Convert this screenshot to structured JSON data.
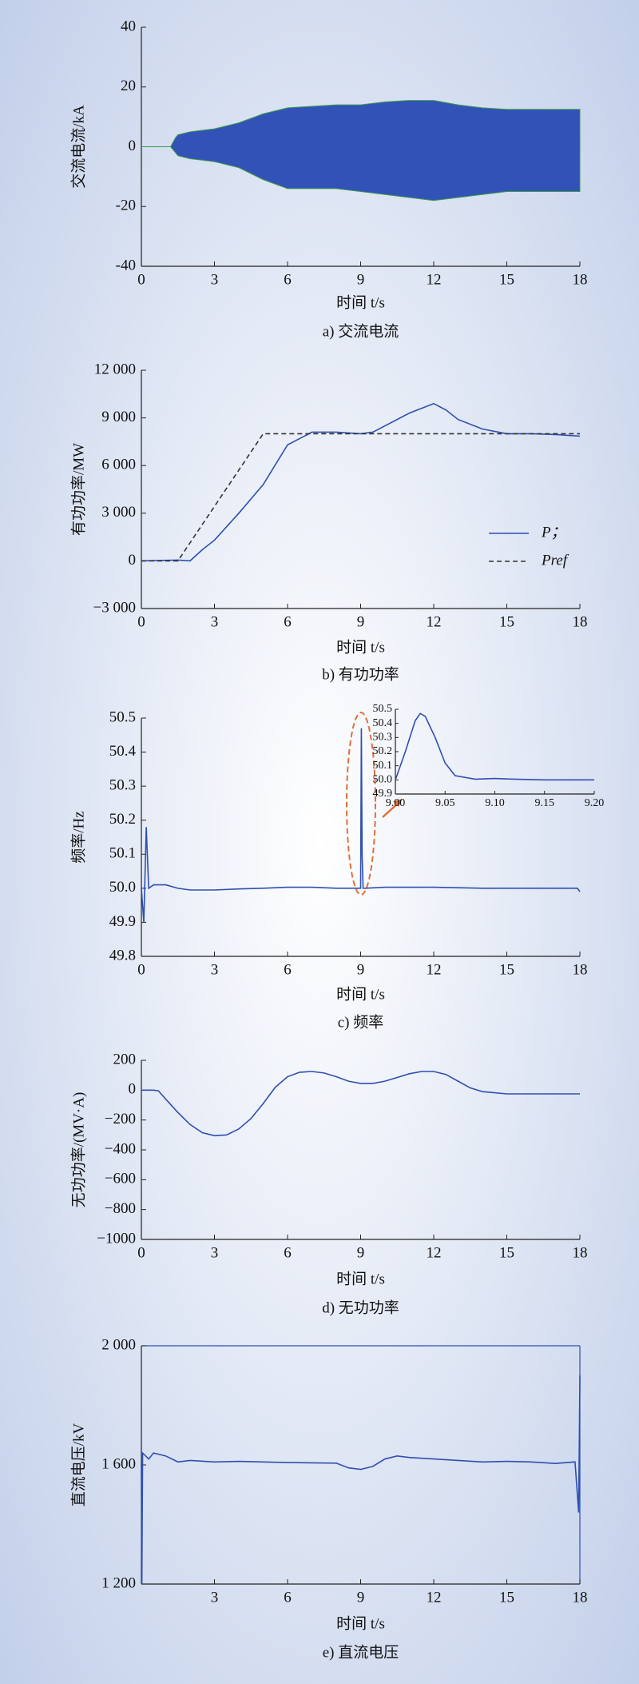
{
  "chart_data": [
    {
      "type": "band",
      "caption": "a) 交流电流",
      "xlabel": "时间 t/s",
      "ylabel": "交流电流/kA",
      "color": "#3352b8",
      "edge_color": "#3c9a4a",
      "x": [
        0,
        1.1,
        1.2,
        1.4,
        1.5,
        2,
        3,
        4,
        5,
        6,
        7,
        8,
        9,
        10,
        11,
        12,
        13,
        14,
        15,
        16,
        17,
        18
      ],
      "upper": [
        0,
        0,
        0,
        3,
        4,
        5,
        6,
        8,
        11,
        13,
        13.5,
        14,
        14,
        15,
        15.5,
        15.5,
        14,
        13,
        12.5,
        12.5,
        12.5,
        12.5
      ],
      "lower": [
        0,
        0,
        0,
        -2,
        -3,
        -4,
        -5,
        -7,
        -11,
        -14,
        -14,
        -14,
        -15,
        -16,
        -17,
        -18,
        -17,
        -16,
        -15,
        -15,
        -15,
        -15
      ],
      "xlim": [
        0,
        18
      ],
      "xticks": [
        0,
        3,
        6,
        9,
        12,
        15,
        18
      ],
      "ylim": [
        -40,
        40
      ],
      "yticks": [
        -40,
        -20,
        0,
        20,
        40
      ]
    },
    {
      "type": "line",
      "caption": "b) 有功功率",
      "xlabel": "时间 t/s",
      "ylabel": "有功功率/MW",
      "series": [
        {
          "name": "P；",
          "color": "#2f4fb0",
          "dash": false,
          "x": [
            0,
            1.5,
            2,
            2.5,
            3,
            4,
            5,
            6,
            7,
            8,
            9,
            9.5,
            10,
            11,
            12,
            12.5,
            13,
            14,
            15,
            16,
            17,
            18
          ],
          "values": [
            0,
            50,
            0,
            700,
            1300,
            3000,
            4800,
            7300,
            8100,
            8100,
            8000,
            8100,
            8500,
            9300,
            9900,
            9500,
            8900,
            8300,
            8000,
            8000,
            7950,
            7850
          ]
        },
        {
          "name": "Pref",
          "color": "#333333",
          "dash": true,
          "x": [
            0,
            1.5,
            5,
            18
          ],
          "values": [
            0,
            0,
            8000,
            8000
          ]
        }
      ],
      "xlim": [
        0,
        18
      ],
      "xticks": [
        0,
        3,
        6,
        9,
        12,
        15,
        18
      ],
      "ylim": [
        -3000,
        12000
      ],
      "yticks": [
        {
          "value": -3000,
          "label": "−3 000"
        },
        0,
        {
          "value": 3000,
          "label": "3 000"
        },
        {
          "value": 6000,
          "label": "6 000"
        },
        {
          "value": 9000,
          "label": "9 000"
        },
        {
          "value": 12000,
          "label": "12 000"
        }
      ]
    },
    {
      "type": "line",
      "caption": "c) 频率",
      "xlabel": "时间 t/s",
      "ylabel": "频率/Hz",
      "series": [
        {
          "color": "#2f4fb0",
          "dash": false,
          "x": [
            0,
            0.1,
            0.2,
            0.3,
            0.5,
            1,
            1.5,
            2,
            3,
            4,
            5,
            6,
            7,
            8,
            8.95,
            9.0,
            9.03,
            9.06,
            9.1,
            9.2,
            10,
            12,
            14,
            16,
            17.9,
            18
          ],
          "values": [
            50.0,
            49.9,
            50.18,
            50.0,
            50.01,
            50.01,
            50.0,
            49.995,
            49.995,
            49.998,
            50.0,
            50.003,
            50.003,
            50.0,
            50.0,
            50.0,
            50.47,
            50.1,
            50.0,
            50.0,
            50.003,
            50.003,
            50.0,
            50.0,
            50.0,
            49.99
          ]
        }
      ],
      "xlim": [
        0,
        18
      ],
      "xticks": [
        0,
        3,
        6,
        9,
        12,
        15,
        18
      ],
      "ylim": [
        49.8,
        50.5
      ],
      "yticks": [
        49.8,
        49.9,
        {
          "value": 50,
          "label": "50.0"
        },
        50.1,
        50.2,
        50.3,
        50.4,
        50.5
      ],
      "inset": {
        "series": [
          {
            "color": "#2f4fb0",
            "x": [
              9.0,
              9.01,
              9.02,
              9.025,
              9.03,
              9.04,
              9.05,
              9.06,
              9.08,
              9.1,
              9.12,
              9.15,
              9.18,
              9.2
            ],
            "values": [
              50.0,
              50.2,
              50.42,
              50.47,
              50.45,
              50.3,
              50.12,
              50.03,
              50.005,
              50.01,
              50.005,
              50.0,
              50.0,
              50.0
            ]
          }
        ],
        "xlim": [
          9.0,
          9.2
        ],
        "xticks": [
          {
            "value": 9,
            "label": "9.00"
          },
          9.05,
          {
            "value": 9.1,
            "label": "9.10"
          },
          9.15,
          {
            "value": 9.2,
            "label": "9.20"
          }
        ],
        "ylim": [
          49.9,
          50.5
        ],
        "yticks": [
          49.9,
          {
            "value": 50,
            "label": "50.0"
          },
          50.1,
          50.2,
          50.3,
          50.4,
          50.5
        ]
      }
    },
    {
      "type": "line",
      "caption": "d) 无功功率",
      "xlabel": "时间 t/s",
      "ylabel": "无功功率/(MV·A)",
      "series": [
        {
          "color": "#2f4fb0",
          "dash": false,
          "x": [
            0,
            0.5,
            0.7,
            1,
            1.5,
            2,
            2.5,
            3,
            3.5,
            4,
            4.5,
            5,
            5.5,
            6,
            6.5,
            7,
            7.5,
            8,
            8.5,
            9,
            9.5,
            10,
            10.5,
            11,
            11.5,
            12,
            12.5,
            13,
            13.5,
            14,
            15,
            16,
            17,
            18
          ],
          "values": [
            0,
            0,
            -5,
            -60,
            -150,
            -230,
            -285,
            -305,
            -300,
            -260,
            -190,
            -90,
            20,
            90,
            120,
            125,
            115,
            90,
            60,
            45,
            45,
            60,
            85,
            110,
            125,
            125,
            105,
            60,
            15,
            -10,
            -25,
            -25,
            -25,
            -25
          ]
        }
      ],
      "xlim": [
        0,
        18
      ],
      "xticks": [
        0,
        3,
        6,
        9,
        12,
        15,
        18
      ],
      "ylim": [
        -1000,
        200
      ],
      "yticks": [
        {
          "value": -1000,
          "label": "−1000"
        },
        {
          "value": -800,
          "label": "−800"
        },
        {
          "value": -600,
          "label": "−600"
        },
        {
          "value": -400,
          "label": "−400"
        },
        {
          "value": -200,
          "label": "−200"
        },
        0,
        200
      ]
    },
    {
      "type": "line",
      "caption": "e) 直流电压",
      "xlabel": "时间 t/s",
      "ylabel": "直流电压/kV",
      "box": true,
      "series": [
        {
          "color": "#2f4fb0",
          "dash": false,
          "x": [
            0,
            0.02,
            0.05,
            0.3,
            0.5,
            1,
            1.5,
            2,
            3,
            4,
            5,
            6,
            7,
            8,
            8.5,
            9,
            9.5,
            10,
            10.5,
            11,
            12,
            13,
            14,
            15,
            16,
            17,
            17.8,
            17.95,
            18
          ],
          "values": [
            1600,
            1200,
            1640,
            1620,
            1640,
            1630,
            1610,
            1615,
            1610,
            1612,
            1610,
            1608,
            1607,
            1606,
            1590,
            1585,
            1595,
            1620,
            1630,
            1625,
            1620,
            1615,
            1610,
            1612,
            1610,
            1605,
            1610,
            1440,
            1900
          ]
        }
      ],
      "xlim": [
        0,
        18
      ],
      "xticks": [
        3,
        6,
        9,
        12,
        15,
        18
      ],
      "ylim": [
        1200,
        2000
      ],
      "yticks": [
        {
          "value": 1200,
          "label": "1 200"
        },
        {
          "value": 1600,
          "label": "1 600"
        },
        {
          "value": 2000,
          "label": "2 000"
        }
      ]
    }
  ]
}
